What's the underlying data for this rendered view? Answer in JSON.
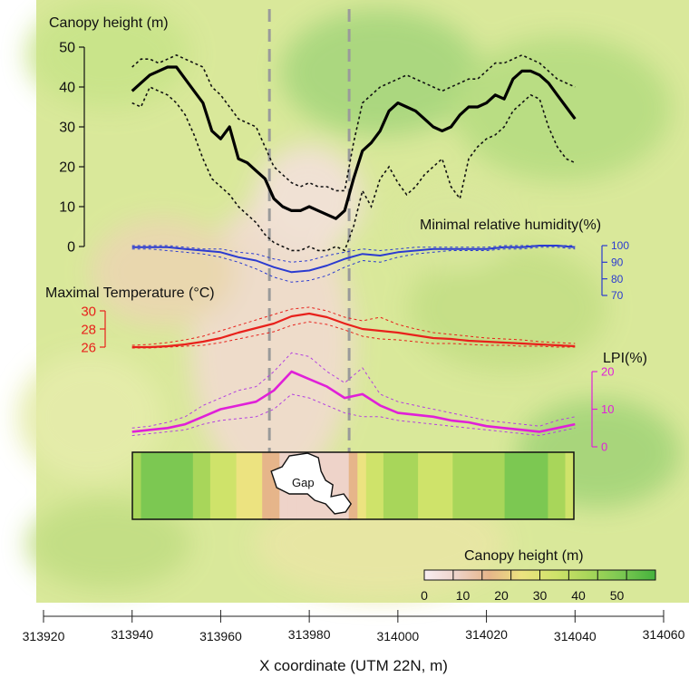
{
  "chart_data": {
    "type": "line",
    "x_axis": {
      "label": "X coordinate (UTM 22N, m)",
      "ticks": [
        313920,
        313940,
        313960,
        313980,
        314000,
        314020,
        314040,
        314060
      ],
      "range": [
        313920,
        314060
      ]
    },
    "gap_bounds_x": [
      313971,
      313989
    ],
    "canopy_height": {
      "label": "Canopy height (m)",
      "ylim": [
        0,
        50
      ],
      "ticks": [
        0,
        10,
        20,
        30,
        40,
        50
      ],
      "color": "#000000",
      "x": [
        313940,
        313942,
        313944,
        313946,
        313948,
        313950,
        313952,
        313954,
        313956,
        313958,
        313960,
        313962,
        313964,
        313966,
        313968,
        313970,
        313972,
        313974,
        313976,
        313978,
        313980,
        313982,
        313984,
        313986,
        313988,
        313990,
        313992,
        313994,
        313996,
        313998,
        314000,
        314002,
        314004,
        314006,
        314008,
        314010,
        314012,
        314014,
        314016,
        314018,
        314020,
        314022,
        314024,
        314026,
        314028,
        314030,
        314032,
        314034,
        314036,
        314038,
        314040
      ],
      "mean": [
        39,
        41,
        43,
        44,
        45,
        45,
        42,
        39,
        36,
        29,
        27,
        30,
        22,
        21,
        19,
        17,
        12,
        10,
        9,
        9,
        10,
        9,
        8,
        7,
        9,
        17,
        24,
        26,
        29,
        34,
        36,
        35,
        34,
        32,
        30,
        29,
        30,
        33,
        35,
        35,
        36,
        38,
        37,
        42,
        44,
        44,
        43,
        41,
        38,
        35,
        32
      ],
      "upper": [
        45,
        47,
        47,
        46,
        47,
        48,
        47,
        46,
        45,
        40,
        38,
        35,
        32,
        31,
        30,
        25,
        20,
        18,
        16,
        15,
        16,
        15,
        15,
        14,
        14,
        26,
        36,
        38,
        40,
        41,
        42,
        43,
        42,
        41,
        40,
        39,
        40,
        41,
        42,
        42,
        44,
        46,
        46,
        47,
        48,
        47,
        46,
        44,
        42,
        41,
        40
      ],
      "lower": [
        36,
        35,
        40,
        39,
        38,
        36,
        33,
        28,
        22,
        17,
        15,
        13,
        10,
        8,
        6,
        3,
        1,
        0,
        -1,
        -1,
        0,
        -1,
        -1,
        0,
        -1,
        5,
        14,
        10,
        17,
        20,
        16,
        13,
        15,
        18,
        20,
        22,
        15,
        12,
        22,
        25,
        27,
        28,
        30,
        34,
        36,
        38,
        37,
        30,
        25,
        22,
        21
      ]
    },
    "min_relative_humidity": {
      "label": "Minimal relative humidity(%)",
      "ylim": [
        70,
        100
      ],
      "ticks": [
        70,
        80,
        90,
        100
      ],
      "color": "#2b3bd0",
      "x": [
        313940,
        313944,
        313948,
        313952,
        313956,
        313960,
        313964,
        313968,
        313972,
        313976,
        313980,
        313984,
        313988,
        313992,
        313996,
        314000,
        314004,
        314008,
        314012,
        314016,
        314020,
        314024,
        314028,
        314032,
        314036,
        314040
      ],
      "mean": [
        99,
        99,
        99,
        98,
        97,
        96,
        93,
        91,
        87,
        84,
        85,
        88,
        92,
        95,
        94,
        96,
        97,
        98,
        98,
        98,
        98,
        99,
        99,
        100,
        100,
        99
      ],
      "upper": [
        100,
        100,
        100,
        99,
        98,
        98,
        96,
        95,
        92,
        90,
        91,
        94,
        96,
        98,
        97,
        98,
        99,
        99,
        99,
        99,
        99,
        100,
        100,
        100,
        100,
        100
      ],
      "lower": [
        98,
        98,
        97,
        96,
        95,
        93,
        90,
        86,
        81,
        78,
        79,
        82,
        87,
        91,
        90,
        93,
        95,
        96,
        97,
        97,
        97,
        98,
        98,
        99,
        99,
        98
      ]
    },
    "max_temperature": {
      "label": "Maximal Temperature (°C)",
      "ylim": [
        26,
        30
      ],
      "ticks": [
        26,
        28,
        30
      ],
      "color": "#e8211b",
      "x": [
        313940,
        313944,
        313948,
        313952,
        313956,
        313960,
        313964,
        313968,
        313972,
        313976,
        313980,
        313984,
        313988,
        313992,
        313996,
        314000,
        314004,
        314008,
        314012,
        314016,
        314020,
        314024,
        314028,
        314032,
        314036,
        314040
      ],
      "mean": [
        26.0,
        26.0,
        26.1,
        26.3,
        26.6,
        27.0,
        27.6,
        28.1,
        28.6,
        29.4,
        29.7,
        29.3,
        28.6,
        28.0,
        27.8,
        27.6,
        27.3,
        27.0,
        26.9,
        26.7,
        26.6,
        26.5,
        26.4,
        26.3,
        26.2,
        26.1
      ],
      "upper": [
        26.2,
        26.3,
        26.5,
        26.8,
        27.2,
        27.8,
        28.4,
        29.0,
        29.6,
        30.2,
        30.4,
        30.0,
        29.3,
        28.9,
        29.3,
        28.5,
        28.0,
        27.6,
        27.4,
        27.2,
        27.0,
        26.9,
        26.8,
        26.6,
        26.5,
        26.4
      ],
      "lower": [
        25.9,
        25.9,
        26.0,
        26.1,
        26.2,
        26.5,
        26.9,
        27.3,
        27.7,
        28.4,
        28.8,
        28.5,
        27.9,
        27.2,
        26.9,
        26.8,
        26.6,
        26.4,
        26.4,
        26.3,
        26.2,
        26.2,
        26.1,
        26.1,
        26.0,
        26.0
      ]
    },
    "lpi": {
      "label": "LPI(%)",
      "ylim": [
        0,
        20
      ],
      "ticks": [
        0,
        10,
        20
      ],
      "color": "#e020d8",
      "x": [
        313940,
        313944,
        313948,
        313952,
        313956,
        313960,
        313964,
        313968,
        313972,
        313976,
        313980,
        313984,
        313988,
        313992,
        313996,
        314000,
        314004,
        314008,
        314012,
        314016,
        314020,
        314024,
        314028,
        314032,
        314036,
        314040
      ],
      "mean": [
        4,
        4.5,
        5,
        6,
        8,
        10,
        11,
        12,
        15,
        20,
        18,
        16,
        13,
        14,
        11,
        9,
        8.5,
        8,
        7,
        6.5,
        5.5,
        5,
        4.5,
        4,
        5,
        6
      ],
      "upper": [
        5,
        5.5,
        6.5,
        8,
        11,
        13,
        15,
        16,
        20,
        25,
        24,
        20,
        17,
        21,
        14,
        12,
        11,
        10,
        9,
        8,
        7,
        6.5,
        6,
        5.5,
        7,
        8
      ],
      "lower": [
        3,
        3.5,
        4,
        4.5,
        6,
        7,
        7.5,
        8,
        10,
        14,
        13,
        11,
        9,
        8,
        8,
        7,
        6.5,
        6,
        5.5,
        5,
        4.5,
        4,
        3.5,
        3,
        4,
        5
      ]
    },
    "transect": {
      "gap_label": "Gap",
      "x_range": [
        313940,
        314040
      ]
    },
    "colorbar": {
      "label": "Canopy height (m)",
      "ticks": [
        0,
        10,
        20,
        30,
        40,
        50
      ],
      "colors": [
        "#f8eef1",
        "#eed3c9",
        "#e6b58a",
        "#ece380",
        "#cfe36a",
        "#a8d65a",
        "#7cc852",
        "#45b23d"
      ]
    }
  }
}
